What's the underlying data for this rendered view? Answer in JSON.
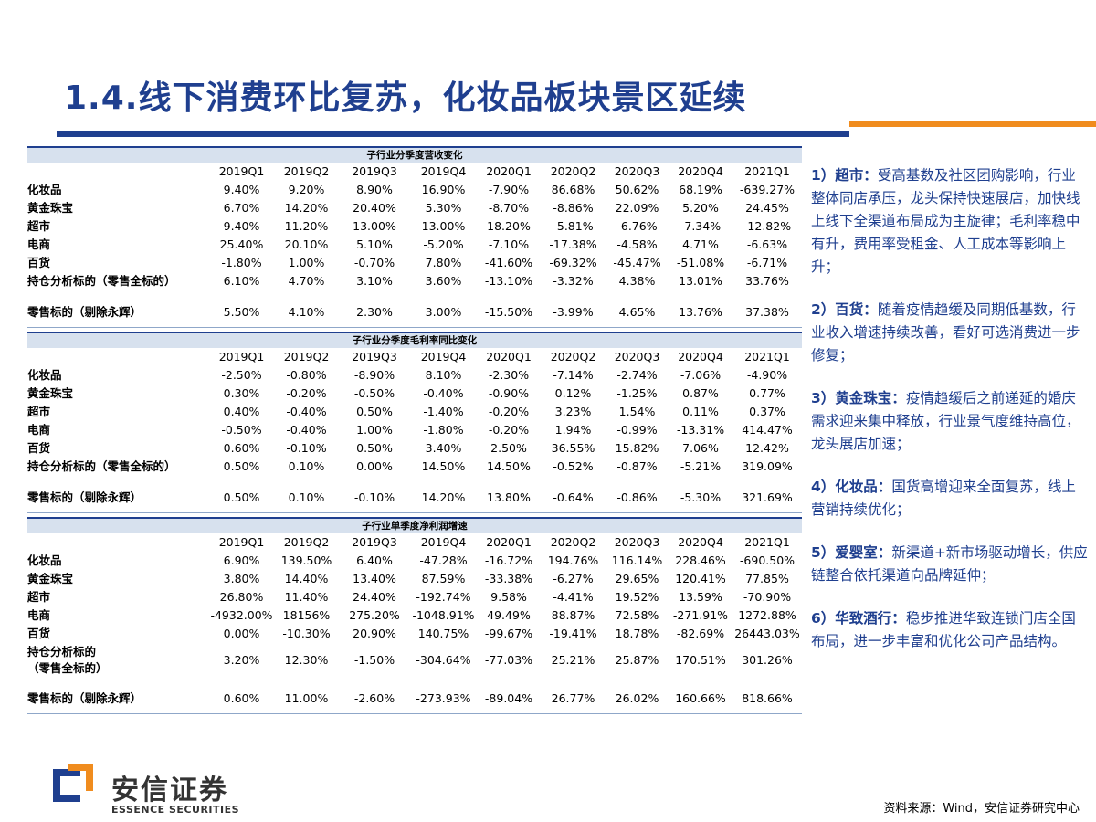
{
  "title": "1.4.线下消费环比复苏，化妆品板块景区延续",
  "columns": [
    "2019Q1",
    "2019Q2",
    "2019Q3",
    "2019Q4",
    "2020Q1",
    "2020Q2",
    "2020Q3",
    "2020Q4",
    "2021Q1"
  ],
  "tables": [
    {
      "heading": "子行业分季度营收变化",
      "rows": [
        {
          "label": "化妆品",
          "values": [
            "9.40%",
            "9.20%",
            "8.90%",
            "16.90%",
            "-7.90%",
            "86.68%",
            "50.62%",
            "68.19%",
            "-639.27%"
          ]
        },
        {
          "label": "黄金珠宝",
          "values": [
            "6.70%",
            "14.20%",
            "20.40%",
            "5.30%",
            "-8.70%",
            "-8.86%",
            "22.09%",
            "5.20%",
            "24.45%"
          ]
        },
        {
          "label": "超市",
          "values": [
            "9.40%",
            "11.20%",
            "13.00%",
            "13.00%",
            "18.20%",
            "-5.81%",
            "-6.76%",
            "-7.34%",
            "-12.82%"
          ]
        },
        {
          "label": "电商",
          "values": [
            "25.40%",
            "20.10%",
            "5.10%",
            "-5.20%",
            "-7.10%",
            "-17.38%",
            "-4.58%",
            "4.71%",
            "-6.63%"
          ]
        },
        {
          "label": "百货",
          "values": [
            "-1.80%",
            "1.00%",
            "-0.70%",
            "7.80%",
            "-41.60%",
            "-69.32%",
            "-45.47%",
            "-51.08%",
            "-6.71%"
          ]
        },
        {
          "label": "持仓分析标的（零售全标的）",
          "values": [
            "6.10%",
            "4.70%",
            "3.10%",
            "3.60%",
            "-13.10%",
            "-3.32%",
            "4.38%",
            "13.01%",
            "33.76%"
          ]
        },
        {
          "label": "零售标的（剔除永辉）",
          "values": [
            "5.50%",
            "4.10%",
            "2.30%",
            "3.00%",
            "-15.50%",
            "-3.99%",
            "4.65%",
            "13.76%",
            "37.38%"
          ],
          "gap": true
        }
      ]
    },
    {
      "heading": "子行业分季度毛利率同比变化",
      "rows": [
        {
          "label": "化妆品",
          "values": [
            "-2.50%",
            "-0.80%",
            "-8.90%",
            "8.10%",
            "-2.30%",
            "-7.14%",
            "-2.74%",
            "-7.06%",
            "-4.90%"
          ]
        },
        {
          "label": "黄金珠宝",
          "values": [
            "0.30%",
            "-0.20%",
            "-0.50%",
            "-0.40%",
            "-0.90%",
            "0.12%",
            "-1.25%",
            "0.87%",
            "0.77%"
          ]
        },
        {
          "label": "超市",
          "values": [
            "0.40%",
            "-0.40%",
            "0.50%",
            "-1.40%",
            "-0.20%",
            "3.23%",
            "1.54%",
            "0.11%",
            "0.37%"
          ]
        },
        {
          "label": "电商",
          "values": [
            "-0.50%",
            "-0.40%",
            "1.00%",
            "-1.80%",
            "-0.20%",
            "1.94%",
            "-0.99%",
            "-13.31%",
            "414.47%"
          ]
        },
        {
          "label": "百货",
          "values": [
            "0.60%",
            "-0.10%",
            "0.50%",
            "3.40%",
            "2.50%",
            "36.55%",
            "15.82%",
            "7.06%",
            "12.42%"
          ]
        },
        {
          "label": "持仓分析标的（零售全标的）",
          "values": [
            "0.50%",
            "0.10%",
            "0.00%",
            "14.50%",
            "14.50%",
            "-0.52%",
            "-0.87%",
            "-5.21%",
            "319.09%"
          ]
        },
        {
          "label": "零售标的（剔除永辉）",
          "values": [
            "0.50%",
            "0.10%",
            "-0.10%",
            "14.20%",
            "13.80%",
            "-0.64%",
            "-0.86%",
            "-5.30%",
            "321.69%"
          ],
          "gap": true
        }
      ]
    },
    {
      "heading": "子行业单季度净利润增速",
      "rows": [
        {
          "label": "化妆品",
          "values": [
            "6.90%",
            "139.50%",
            "6.40%",
            "-47.28%",
            "-16.72%",
            "194.76%",
            "116.14%",
            "228.46%",
            "-690.50%"
          ]
        },
        {
          "label": "黄金珠宝",
          "values": [
            "3.80%",
            "14.40%",
            "13.40%",
            "87.59%",
            "-33.38%",
            "-6.27%",
            "29.65%",
            "120.41%",
            "77.85%"
          ]
        },
        {
          "label": "超市",
          "values": [
            "26.80%",
            "11.40%",
            "24.40%",
            "-192.74%",
            "9.58%",
            "-4.41%",
            "19.52%",
            "13.59%",
            "-70.90%"
          ]
        },
        {
          "label": "电商",
          "values": [
            "-4932.00%",
            "18156%",
            "275.20%",
            "-1048.91%",
            "49.49%",
            "88.87%",
            "72.58%",
            "-271.91%",
            "1272.88%"
          ]
        },
        {
          "label": "百货",
          "values": [
            "0.00%",
            "-10.30%",
            "20.90%",
            "140.75%",
            "-99.67%",
            "-19.41%",
            "18.78%",
            "-82.69%",
            "26443.03%"
          ]
        },
        {
          "label": "持仓分析标的（零售全标的）",
          "values": [
            "3.20%",
            "12.30%",
            "-1.50%",
            "-304.64%",
            "-77.03%",
            "25.21%",
            "25.87%",
            "170.51%",
            "301.26%"
          ],
          "tall": true
        },
        {
          "label": "零售标的（剔除永辉）",
          "values": [
            "0.60%",
            "11.00%",
            "-2.60%",
            "-273.93%",
            "-89.04%",
            "26.77%",
            "26.02%",
            "160.66%",
            "818.66%"
          ],
          "gap": true
        }
      ]
    }
  ],
  "points": [
    {
      "num": "1）",
      "kw": "超市：",
      "text": "受高基数及社区团购影响，行业整体同店承压，龙头保持快速展店，加快线上线下全渠道布局成为主旋律；毛利率稳中有升，费用率受租金、人工成本等影响上升；"
    },
    {
      "num": "2）",
      "kw": "百货：",
      "text": "随着疫情趋缓及同期低基数，行业收入增速持续改善，看好可选消费进一步修复；"
    },
    {
      "num": "3）",
      "kw": "黄金珠宝：",
      "text": "疫情趋缓后之前递延的婚庆需求迎来集中释放，行业景气度维持高位，龙头展店加速；"
    },
    {
      "num": "4）",
      "kw": "化妆品：",
      "text": "国货高增迎来全面复苏，线上营销持续优化；"
    },
    {
      "num": "5）",
      "kw": "爱婴室：",
      "text": "新渠道+新市场驱动增长，供应链整合依托渠道向品牌延伸；"
    },
    {
      "num": "6）",
      "kw": "华致酒行：",
      "text": "稳步推进华致连锁门店全国布局，进一步丰富和优化公司产品结构。"
    }
  ],
  "logo": {
    "cn": "安信证券",
    "en": "ESSENCE SECURITIES"
  },
  "source": "资料来源：Wind，安信证券研究中心",
  "colors": {
    "navy": "#1f3f8f",
    "orange": "#f08c1e",
    "header_bg": "#d7e1ee"
  }
}
